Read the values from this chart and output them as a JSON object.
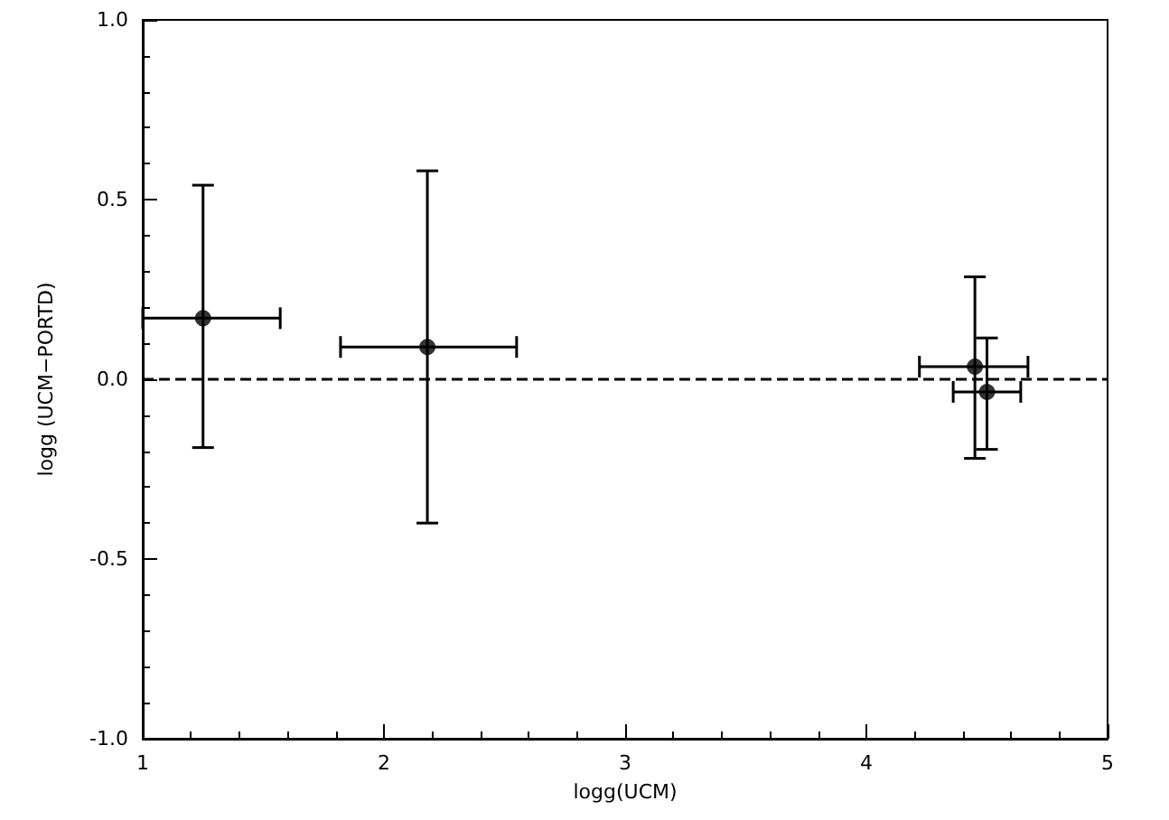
{
  "chart_data": {
    "type": "scatter",
    "xlabel": "logg(UCM)",
    "ylabel": "logg (UCM−PORTD)",
    "x": [
      1.25,
      2.18,
      4.45,
      4.5
    ],
    "values": [
      0.17,
      0.09,
      0.035,
      -0.035
    ],
    "errors": [
      [
        -0.19,
        0.54
      ],
      [
        -0.4,
        0.58
      ],
      [
        -0.22,
        0.285
      ],
      [
        -0.195,
        0.115
      ]
    ],
    "xerrors": [
      [
        1.0,
        1.57
      ],
      [
        1.82,
        2.55
      ],
      [
        4.22,
        4.67
      ],
      [
        4.36,
        4.64
      ]
    ],
    "color": "#000000",
    "marker": "circle",
    "xlim": [
      1,
      5
    ],
    "xticks": [
      1,
      2,
      3,
      4,
      5
    ],
    "ylim": [
      -1,
      1
    ],
    "yticks": [
      {
        "value": -1,
        "label": "-1.0"
      },
      {
        "value": -0.5,
        "label": "-0.5"
      },
      {
        "value": 0,
        "label": "0.0"
      },
      {
        "value": 0.5,
        "label": "0.5"
      },
      {
        "value": 1,
        "label": "1.0"
      }
    ],
    "ref_lines": [
      {
        "axis": "y",
        "value": 0,
        "line_style": "dashed"
      }
    ],
    "grid": false
  }
}
